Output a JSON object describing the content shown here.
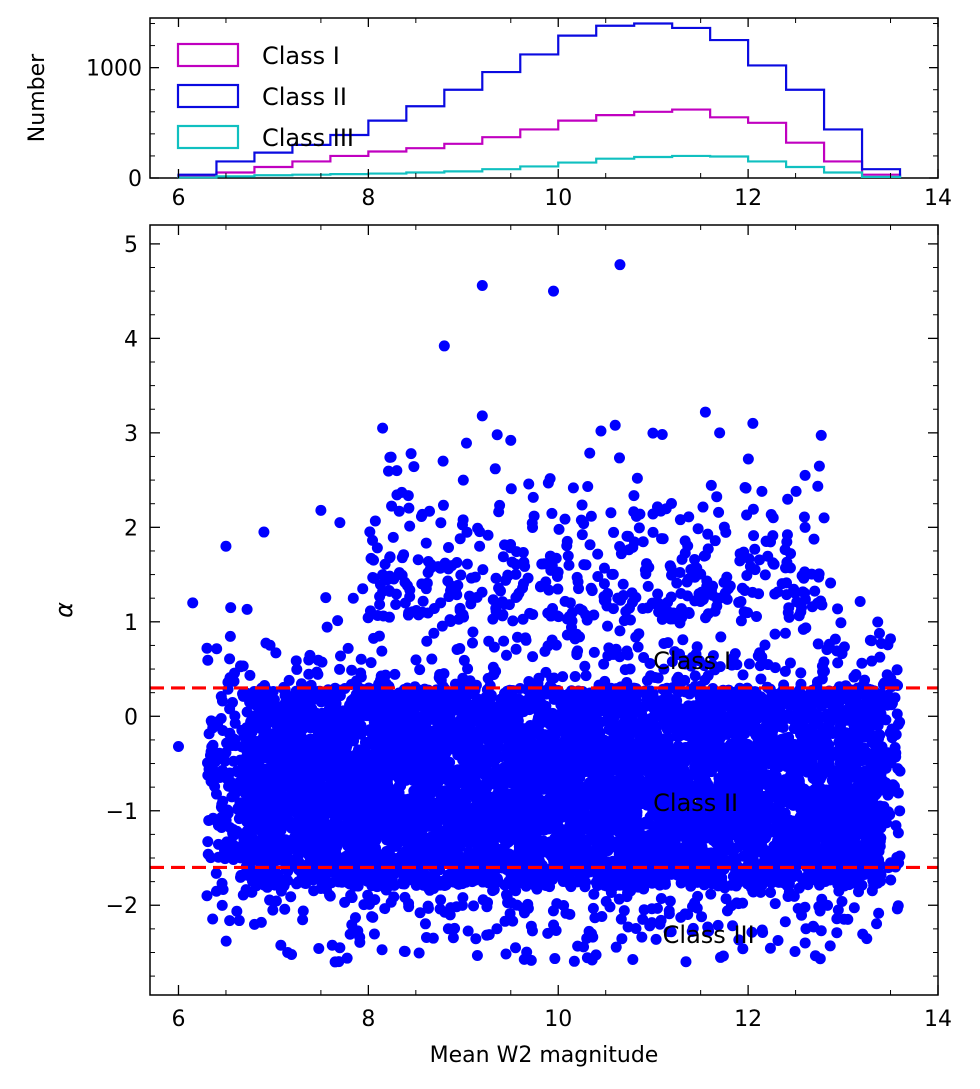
{
  "chart_data": [
    {
      "type": "area",
      "panel": "top",
      "xlabel": "",
      "ylabel": "Number",
      "xlim": [
        5.7,
        14
      ],
      "ylim": [
        0,
        1450
      ],
      "xticks": [
        6,
        8,
        10,
        12,
        14
      ],
      "yticks": [
        0,
        1000
      ],
      "legend_position": "upper-left",
      "bin_edges": [
        6.0,
        6.4,
        6.8,
        7.2,
        7.6,
        8.0,
        8.4,
        8.8,
        9.2,
        9.6,
        10.0,
        10.4,
        10.8,
        11.2,
        11.6,
        12.0,
        12.4,
        12.8,
        13.2,
        13.6
      ],
      "series": [
        {
          "name": "Class I",
          "color": "#c000c0",
          "values": [
            15,
            50,
            100,
            150,
            200,
            240,
            270,
            310,
            370,
            440,
            520,
            570,
            600,
            620,
            550,
            500,
            320,
            150,
            30
          ]
        },
        {
          "name": "Class II",
          "color": "#0a0ae0",
          "values": [
            30,
            150,
            230,
            300,
            390,
            520,
            650,
            800,
            960,
            1120,
            1290,
            1380,
            1400,
            1360,
            1250,
            1020,
            800,
            440,
            80
          ]
        },
        {
          "name": "Class III",
          "color": "#10c0c0",
          "values": [
            5,
            15,
            25,
            30,
            35,
            40,
            50,
            60,
            80,
            105,
            140,
            175,
            190,
            200,
            195,
            150,
            100,
            50,
            10
          ]
        }
      ]
    },
    {
      "type": "scatter",
      "panel": "bottom",
      "xlabel": "Mean W2 magnitude",
      "ylabel": "α",
      "xlim": [
        5.7,
        14
      ],
      "ylim": [
        -2.95,
        5.2
      ],
      "xticks": [
        6,
        8,
        10,
        12,
        14
      ],
      "yticks": [
        -2,
        -1,
        0,
        1,
        2,
        3,
        4,
        5
      ],
      "point_color": "#0000ff",
      "outlier_points": [
        [
          8.8,
          3.92
        ],
        [
          9.2,
          4.56
        ],
        [
          9.95,
          4.5
        ],
        [
          10.65,
          4.78
        ],
        [
          9.2,
          3.18
        ],
        [
          10.6,
          3.08
        ],
        [
          11.55,
          3.22
        ],
        [
          12.05,
          3.1
        ],
        [
          8.15,
          3.05
        ],
        [
          10.45,
          3.02
        ],
        [
          11.7,
          3.0
        ],
        [
          9.5,
          2.92
        ],
        [
          8.45,
          2.78
        ],
        [
          8.3,
          2.6
        ],
        [
          9.0,
          2.5
        ],
        [
          12.6,
          2.55
        ],
        [
          6.9,
          1.95
        ],
        [
          6.5,
          1.8
        ],
        [
          7.5,
          2.18
        ],
        [
          7.7,
          2.05
        ],
        [
          6.15,
          1.2
        ],
        [
          6.55,
          1.15
        ],
        [
          6.3,
          0.72
        ],
        [
          6.0,
          -0.32
        ],
        [
          6.3,
          -1.9
        ],
        [
          7.15,
          -2.5
        ],
        [
          7.65,
          -2.6
        ],
        [
          7.7,
          -2.45
        ],
        [
          9.55,
          -2.45
        ],
        [
          10.3,
          -2.35
        ],
        [
          12.95,
          -2.05
        ],
        [
          13.05,
          -2.15
        ],
        [
          13.5,
          -1.55
        ],
        [
          13.6,
          -0.58
        ],
        [
          13.3,
          0.8
        ],
        [
          13.5,
          0.82
        ],
        [
          12.6,
          2.0
        ],
        [
          12.8,
          2.1
        ]
      ],
      "dense_region": {
        "x_range": [
          6.7,
          13.4
        ],
        "y_range": [
          -1.8,
          0.3
        ]
      },
      "reference_lines": [
        {
          "y": 0.3,
          "color": "#ff0000",
          "style": "dashed"
        },
        {
          "y": -1.6,
          "color": "#ff0000",
          "style": "dashed"
        }
      ],
      "annotations": [
        {
          "text": "Class I",
          "x": 11.0,
          "y": 0.5
        },
        {
          "text": "Class II",
          "x": 11.0,
          "y": -1.0
        },
        {
          "text": "Class III",
          "x": 11.1,
          "y": -2.4
        }
      ]
    }
  ]
}
